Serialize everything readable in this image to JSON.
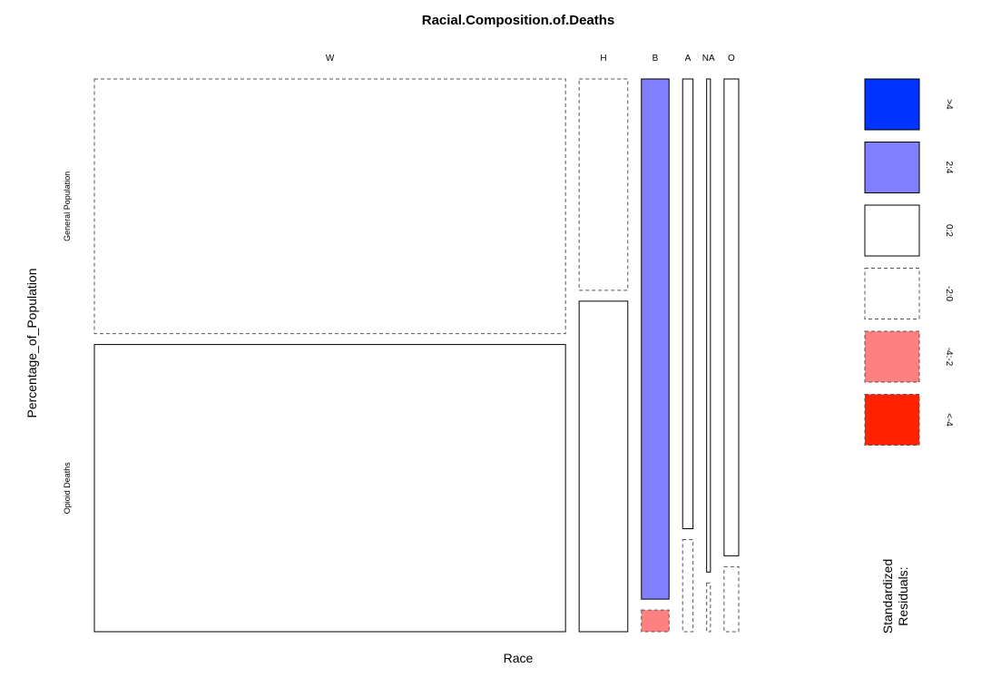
{
  "chart_data": {
    "type": "mosaic",
    "title": "Racial.Composition.of.Deaths",
    "xlabel": "Race",
    "ylabel": "Percentage_of_Population",
    "columns": [
      "W",
      "H",
      "B",
      "A",
      "NA",
      "O"
    ],
    "rows": [
      "General Population",
      "Opioid Deaths"
    ],
    "column_share": [
      0.7535,
      0.0778,
      0.0442,
      0.0166,
      0.0061,
      0.0234
    ],
    "cells": [
      {
        "column": "W",
        "general_population_share": 0.47,
        "opioid_deaths_share": 0.53,
        "residual_general_population": "-2:0",
        "residual_opioid_deaths": "0:2"
      },
      {
        "column": "H",
        "general_population_share": 0.39,
        "opioid_deaths_share": 0.61,
        "residual_general_population": "-2:0",
        "residual_opioid_deaths": "0:2"
      },
      {
        "column": "B",
        "general_population_share": 0.96,
        "opioid_deaths_share": 0.04,
        "residual_general_population": "2:4",
        "residual_opioid_deaths": "-4:-2"
      },
      {
        "column": "A",
        "general_population_share": 0.83,
        "opioid_deaths_share": 0.17,
        "residual_general_population": "0:2",
        "residual_opioid_deaths": "-2:0"
      },
      {
        "column": "NA",
        "general_population_share": 0.91,
        "opioid_deaths_share": 0.09,
        "residual_general_population": "0:2",
        "residual_opioid_deaths": "-2:0"
      },
      {
        "column": "O",
        "general_population_share": 0.88,
        "opioid_deaths_share": 0.12,
        "residual_general_population": "0:2",
        "residual_opioid_deaths": "-2:0"
      }
    ],
    "legend": {
      "title_lines": [
        "Standardized",
        "Residuals:"
      ],
      "placement": "right",
      "items": [
        {
          "label": ">4",
          "fill": "#0033ff",
          "dashed": false
        },
        {
          "label": "2:4",
          "fill": "#8080ff",
          "dashed": false
        },
        {
          "label": "0:2",
          "fill": "#ffffff",
          "dashed": false
        },
        {
          "label": "-2:0",
          "fill": "#ffffff",
          "dashed": true
        },
        {
          "label": "-4:-2",
          "fill": "#ff8080",
          "dashed": true
        },
        {
          "label": "<-4",
          "fill": "#ff2200",
          "dashed": true
        }
      ]
    },
    "colors": {
      "outline": "#000000",
      "dashed_outline": "#555555"
    }
  }
}
